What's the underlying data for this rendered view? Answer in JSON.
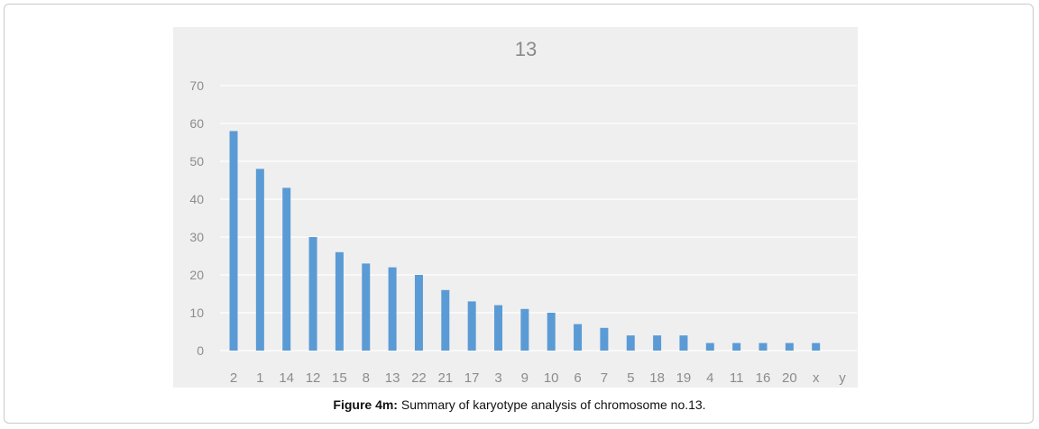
{
  "chart_data": {
    "type": "bar",
    "title": "13",
    "xlabel": "",
    "ylabel": "",
    "categories": [
      "2",
      "1",
      "14",
      "12",
      "15",
      "8",
      "13",
      "22",
      "21",
      "17",
      "3",
      "9",
      "10",
      "6",
      "7",
      "5",
      "18",
      "19",
      "4",
      "11",
      "16",
      "20",
      "x",
      "y"
    ],
    "values": [
      58,
      48,
      43,
      30,
      26,
      23,
      22,
      20,
      16,
      13,
      12,
      11,
      10,
      7,
      6,
      4,
      4,
      4,
      2,
      2,
      2,
      2,
      2,
      0
    ],
    "ylim": [
      0,
      70
    ],
    "yticks": [
      0,
      10,
      20,
      30,
      40,
      50,
      60,
      70
    ],
    "grid": true,
    "bar_color": "#5b9bd5",
    "grid_color": "#ffffff",
    "background_color": "#efefef"
  },
  "caption": {
    "label": "Figure 4m:",
    "text": " Summary of karyotype analysis of chromosome no.13."
  }
}
